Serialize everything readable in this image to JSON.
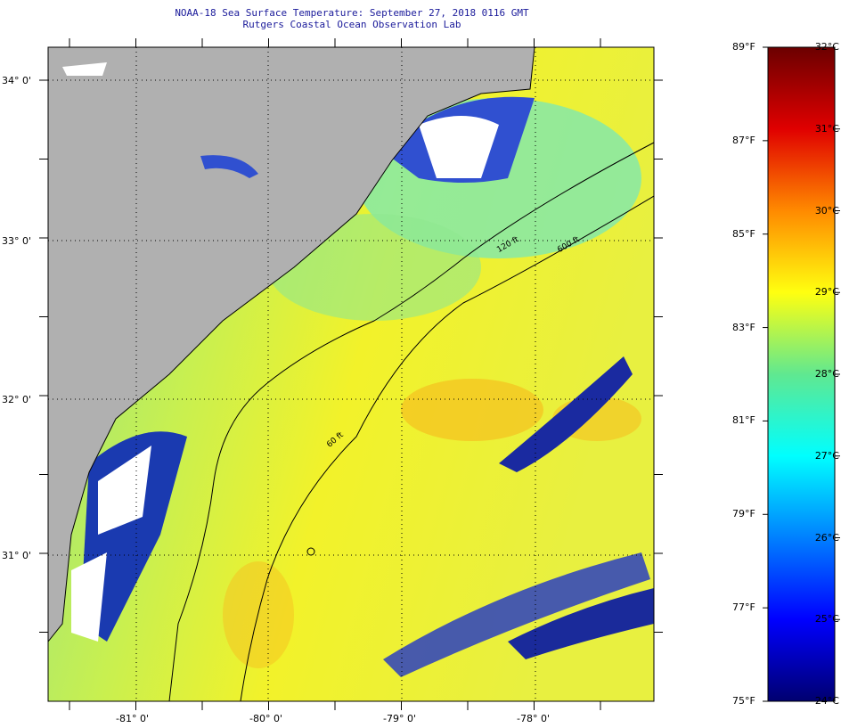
{
  "header": {
    "title": "NOAA-18 Sea Surface Temperature:  September 27, 2018 0116 GMT",
    "subtitle": "Rutgers Coastal Ocean Observation Lab"
  },
  "map": {
    "lat_labels": [
      "34° 0'",
      "33° 0'",
      "32° 0'",
      "31° 0'"
    ],
    "lon_labels": [
      "-81° 0'",
      "-80° 0'",
      "-79° 0'",
      "-78° 0'"
    ],
    "isobath_labels": [
      "60 ft",
      "120 ft",
      "600 ft"
    ],
    "colors": {
      "land": "#b0b0b0",
      "nodata": "#ffffff"
    }
  },
  "colorbar": {
    "f_labels": [
      "89°F",
      "87°F",
      "85°F",
      "83°F",
      "81°F",
      "79°F",
      "77°F",
      "75°F"
    ],
    "c_labels": [
      "32°C",
      "31°C",
      "30°C",
      "29°C",
      "28°C",
      "27°C",
      "26°C",
      "25°C",
      "24°C"
    ],
    "range_c": [
      24,
      32
    ]
  }
}
